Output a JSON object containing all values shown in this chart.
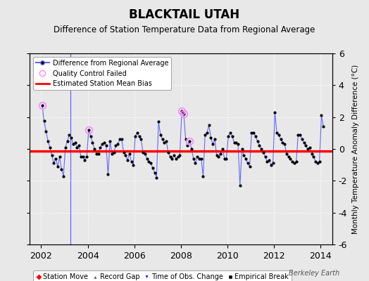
{
  "title": "BLACKTAIL UTAH",
  "subtitle": "Difference of Station Temperature Data from Regional Average",
  "ylabel": "Monthly Temperature Anomaly Difference (°C)",
  "xlim": [
    2001.5,
    2014.5
  ],
  "ylim": [
    -6,
    6
  ],
  "yticks": [
    -4,
    -2,
    0,
    2,
    4
  ],
  "yticks_outer": [
    -6,
    -4,
    -2,
    0,
    2,
    4,
    6
  ],
  "xticks": [
    2002,
    2004,
    2006,
    2008,
    2010,
    2012,
    2014
  ],
  "mean_bias": -0.15,
  "background_color": "#e8e8e8",
  "line_color": "#6666ff",
  "marker_color": "#000000",
  "bias_color": "#ff0000",
  "qc_failed_color": "#ff88ff",
  "watermark": "Berkeley Earth",
  "time_series": [
    2002.042,
    2.75,
    2002.125,
    1.75,
    2002.208,
    1.1,
    2002.292,
    0.5,
    2002.375,
    0.1,
    2002.458,
    -0.4,
    2002.542,
    -0.9,
    2002.625,
    -0.6,
    2002.708,
    -1.1,
    2002.792,
    -0.5,
    2002.875,
    -1.3,
    2002.958,
    -1.7,
    2003.042,
    0.1,
    2003.125,
    0.5,
    2003.208,
    0.9,
    2003.292,
    0.7,
    2003.375,
    0.3,
    2003.458,
    0.4,
    2003.542,
    0.1,
    2003.625,
    0.2,
    2003.708,
    -0.5,
    2003.792,
    -0.5,
    2003.875,
    -0.7,
    2003.958,
    -0.5,
    2004.042,
    1.2,
    2004.125,
    0.8,
    2004.208,
    0.4,
    2004.292,
    0.0,
    2004.375,
    -0.3,
    2004.458,
    -0.3,
    2004.542,
    0.1,
    2004.625,
    0.3,
    2004.708,
    0.4,
    2004.792,
    0.2,
    2004.875,
    -1.6,
    2004.958,
    0.5,
    2005.042,
    -0.3,
    2005.125,
    -0.2,
    2005.208,
    0.2,
    2005.292,
    0.3,
    2005.375,
    0.6,
    2005.458,
    0.6,
    2005.542,
    -0.2,
    2005.625,
    -0.4,
    2005.708,
    -0.7,
    2005.792,
    -0.3,
    2005.875,
    -0.8,
    2005.958,
    -1.0,
    2006.042,
    0.8,
    2006.125,
    1.0,
    2006.208,
    0.8,
    2006.292,
    0.6,
    2006.375,
    -0.2,
    2006.458,
    -0.3,
    2006.542,
    -0.6,
    2006.625,
    -0.8,
    2006.708,
    -0.9,
    2006.792,
    -1.2,
    2006.875,
    -1.5,
    2006.958,
    -1.8,
    2007.042,
    1.7,
    2007.125,
    0.9,
    2007.208,
    0.6,
    2007.292,
    0.4,
    2007.375,
    0.5,
    2007.458,
    -0.2,
    2007.542,
    -0.5,
    2007.625,
    -0.6,
    2007.708,
    -0.4,
    2007.792,
    -0.6,
    2007.875,
    -0.5,
    2007.958,
    -0.4,
    2008.042,
    2.4,
    2008.125,
    2.2,
    2008.208,
    0.6,
    2008.292,
    0.2,
    2008.375,
    0.5,
    2008.458,
    0.0,
    2008.542,
    -0.6,
    2008.625,
    -0.9,
    2008.708,
    -0.5,
    2008.792,
    -0.6,
    2008.875,
    -0.6,
    2008.958,
    -1.7,
    2009.042,
    0.9,
    2009.125,
    1.0,
    2009.208,
    1.5,
    2009.292,
    0.7,
    2009.375,
    0.3,
    2009.458,
    0.6,
    2009.542,
    -0.4,
    2009.625,
    -0.5,
    2009.708,
    -0.3,
    2009.792,
    0.0,
    2009.875,
    -0.6,
    2009.958,
    -0.6,
    2010.042,
    0.8,
    2010.125,
    1.0,
    2010.208,
    0.8,
    2010.292,
    0.4,
    2010.375,
    0.4,
    2010.458,
    0.3,
    2010.542,
    -2.3,
    2010.625,
    0.0,
    2010.708,
    -0.4,
    2010.792,
    -0.6,
    2010.875,
    -0.9,
    2010.958,
    -1.1,
    2011.042,
    1.0,
    2011.125,
    1.0,
    2011.208,
    0.8,
    2011.292,
    0.5,
    2011.375,
    0.2,
    2011.458,
    0.0,
    2011.542,
    -0.2,
    2011.625,
    -0.5,
    2011.708,
    -0.8,
    2011.792,
    -0.7,
    2011.875,
    -1.0,
    2011.958,
    -0.9,
    2012.042,
    2.3,
    2012.125,
    1.0,
    2012.208,
    0.9,
    2012.292,
    0.6,
    2012.375,
    0.4,
    2012.458,
    0.3,
    2012.542,
    -0.3,
    2012.625,
    -0.5,
    2012.708,
    -0.6,
    2012.792,
    -0.8,
    2012.875,
    -0.9,
    2012.958,
    -0.8,
    2013.042,
    0.9,
    2013.125,
    0.9,
    2013.208,
    0.6,
    2013.292,
    0.4,
    2013.375,
    0.2,
    2013.458,
    0.0,
    2013.542,
    0.1,
    2013.625,
    -0.3,
    2013.708,
    -0.5,
    2013.792,
    -0.8,
    2013.875,
    -0.9,
    2013.958,
    -0.8,
    2014.042,
    2.1,
    2014.125,
    1.4
  ],
  "qc_failed_points": [
    [
      2002.042,
      2.75
    ],
    [
      2004.042,
      1.2
    ],
    [
      2008.042,
      2.4
    ],
    [
      2008.125,
      2.2
    ],
    [
      2008.375,
      0.5
    ]
  ],
  "vertical_line_x": 2003.25,
  "legend1_entries": [
    "Difference from Regional Average",
    "Quality Control Failed",
    "Estimated Station Mean Bias"
  ],
  "legend2_entries": [
    "Station Move",
    "Record Gap",
    "Time of Obs. Change",
    "Empirical Break"
  ]
}
